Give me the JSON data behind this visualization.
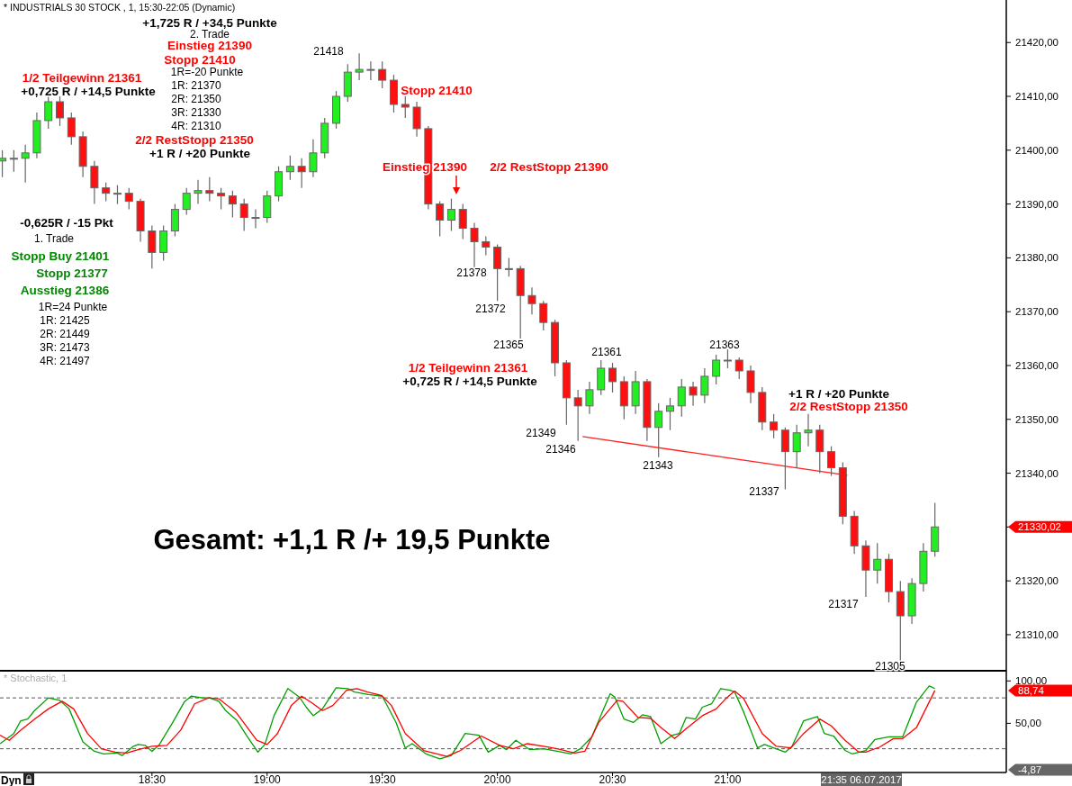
{
  "chart_data": [
    {
      "type": "candlestick",
      "title": "* INDUSTRIALS 30 STOCK , 1, 15:30-22:05 (Dynamic)",
      "tick_labels": "y",
      "xlim": [
        17.84,
        22.21
      ],
      "ylim": [
        21303.3,
        21427.9
      ],
      "yticks": [
        {
          "value": 21310,
          "label": "21310,00"
        },
        {
          "value": 21320,
          "label": "21320,00"
        },
        {
          "value": 21330,
          "label": null
        },
        {
          "value": 21340,
          "label": "21340,00"
        },
        {
          "value": 21350,
          "label": "21350,00"
        },
        {
          "value": 21360,
          "label": "21360,00"
        },
        {
          "value": 21370,
          "label": "21370,00"
        },
        {
          "value": 21380,
          "label": "21380,00"
        },
        {
          "value": 21390,
          "label": "21390,00"
        },
        {
          "value": 21400,
          "label": "21400,00"
        },
        {
          "value": 21410,
          "label": "21410,00"
        },
        {
          "value": 21420,
          "label": "21420,00"
        }
      ],
      "x": [
        17.85,
        17.9,
        17.95,
        18,
        18.05,
        18.1,
        18.15,
        18.2,
        18.25,
        18.3,
        18.35,
        18.4,
        18.45,
        18.5,
        18.55,
        18.6,
        18.65,
        18.7,
        18.75,
        18.8,
        18.85,
        18.9,
        18.95,
        19,
        19.05,
        19.1,
        19.15,
        19.2,
        19.25,
        19.3,
        19.35,
        19.4,
        19.45,
        19.5,
        19.55,
        19.6,
        19.65,
        19.7,
        19.75,
        19.8,
        19.85,
        19.9,
        19.95,
        20,
        20.05,
        20.1,
        20.15,
        20.2,
        20.25,
        20.3,
        20.35,
        20.4,
        20.45,
        20.5,
        20.55,
        20.6,
        20.65,
        20.7,
        20.75,
        20.8,
        20.85,
        20.9,
        20.95,
        21,
        21.05,
        21.1,
        21.15,
        21.2,
        21.25,
        21.3,
        21.35,
        21.4,
        21.45,
        21.5,
        21.55,
        21.6,
        21.65,
        21.7,
        21.75,
        21.8,
        21.85,
        21.9
      ],
      "ohlc": [
        [
          21398,
          21400,
          21395,
          21398.5
        ],
        [
          21398.5,
          21400,
          21396,
          21398.5
        ],
        [
          21398.5,
          21401,
          21394,
          21399.5
        ],
        [
          21399.5,
          21407,
          21398.5,
          21405.5
        ],
        [
          21405.5,
          21411,
          21404,
          21409
        ],
        [
          21409,
          21410,
          21404.5,
          21406
        ],
        [
          21406,
          21407,
          21401,
          21402.5
        ],
        [
          21402.5,
          21403.5,
          21395,
          21397
        ],
        [
          21397,
          21398,
          21390,
          21393
        ],
        [
          21393,
          21394,
          21390.5,
          21392
        ],
        [
          21392,
          21393.5,
          21390,
          21392
        ],
        [
          21392,
          21393,
          21389,
          21390.5
        ],
        [
          21390.5,
          21391,
          21383,
          21385
        ],
        [
          21385,
          21386,
          21378,
          21381
        ],
        [
          21381,
          21386,
          21379.5,
          21385
        ],
        [
          21385,
          21390,
          21384,
          21389
        ],
        [
          21389,
          21393,
          21388,
          21392
        ],
        [
          21392,
          21394.5,
          21390,
          21392.5
        ],
        [
          21392.5,
          21395,
          21390.5,
          21392
        ],
        [
          21392,
          21393,
          21389,
          21391.5
        ],
        [
          21391.5,
          21392.5,
          21387.5,
          21390
        ],
        [
          21390,
          21391,
          21385,
          21387.5
        ],
        [
          21387.5,
          21389,
          21385.5,
          21387.5
        ],
        [
          21387.5,
          21392.5,
          21386.5,
          21391.5
        ],
        [
          21391.5,
          21397,
          21390.5,
          21396
        ],
        [
          21396,
          21399,
          21394.5,
          21397
        ],
        [
          21397,
          21398.5,
          21393,
          21396
        ],
        [
          21396,
          21402,
          21395,
          21399.5
        ],
        [
          21399.5,
          21406,
          21398.5,
          21405
        ],
        [
          21405,
          21411,
          21404,
          21410
        ],
        [
          21410,
          21416,
          21409,
          21414.5
        ],
        [
          21414.5,
          21418,
          21413,
          21415
        ],
        [
          21415,
          21416.5,
          21413,
          21415
        ],
        [
          21415,
          21416.5,
          21411.5,
          21413
        ],
        [
          21413,
          21414,
          21407,
          21408.5
        ],
        [
          21408.5,
          21410,
          21406,
          21408
        ],
        [
          21408,
          21409,
          21402.5,
          21404
        ],
        [
          21404,
          21404.5,
          21389,
          21390
        ],
        [
          21390,
          21390.5,
          21384,
          21387
        ],
        [
          21387,
          21391,
          21385,
          21389
        ],
        [
          21389,
          21390,
          21383.5,
          21385.5
        ],
        [
          21385.5,
          21386.5,
          21378,
          21383
        ],
        [
          21383,
          21384,
          21380.5,
          21382
        ],
        [
          21382,
          21382.5,
          21372,
          21378
        ],
        [
          21378,
          21380,
          21376.5,
          21378
        ],
        [
          21378,
          21378.5,
          21365,
          21373
        ],
        [
          21373,
          21374.5,
          21369.5,
          21371.5
        ],
        [
          21371.5,
          21372,
          21366.5,
          21368
        ],
        [
          21368,
          21368.5,
          21358,
          21360.5
        ],
        [
          21360.5,
          21361,
          21349,
          21354
        ],
        [
          21354,
          21355.5,
          21346,
          21352.5
        ],
        [
          21352.5,
          21357,
          21351,
          21355.5
        ],
        [
          21355.5,
          21361,
          21354.5,
          21359.5
        ],
        [
          21359.5,
          21360.5,
          21355,
          21357
        ],
        [
          21357,
          21358,
          21350,
          21352.5
        ],
        [
          21352.5,
          21359,
          21351,
          21357
        ],
        [
          21357,
          21357.5,
          21346,
          21348.5
        ],
        [
          21348.5,
          21353,
          21343,
          21351.5
        ],
        [
          21351.5,
          21354,
          21348,
          21352.5
        ],
        [
          21352.5,
          21357.5,
          21350.5,
          21356
        ],
        [
          21356,
          21357,
          21352.5,
          21354.5
        ],
        [
          21354.5,
          21359.5,
          21353,
          21358
        ],
        [
          21358,
          21362,
          21356.5,
          21361
        ],
        [
          21361,
          21363,
          21359.5,
          21361
        ],
        [
          21361,
          21361.5,
          21357.5,
          21359
        ],
        [
          21359,
          21360,
          21353,
          21355
        ],
        [
          21355,
          21356,
          21348,
          21349.5
        ],
        [
          21349.5,
          21351,
          21346.5,
          21348
        ],
        [
          21348,
          21348.5,
          21337,
          21344
        ],
        [
          21344,
          21349,
          21341,
          21347.5
        ],
        [
          21347.5,
          21351,
          21345,
          21348
        ],
        [
          21348,
          21349,
          21340,
          21344
        ],
        [
          21344,
          21345,
          21339.5,
          21341
        ],
        [
          21341,
          21342,
          21330.5,
          21332
        ],
        [
          21332,
          21333,
          21325,
          21326.5
        ],
        [
          21326.5,
          21327.5,
          21317,
          21322
        ],
        [
          21322,
          21327,
          21319.5,
          21324
        ],
        [
          21324,
          21325,
          21316,
          21318
        ],
        [
          21318,
          21320,
          21305,
          21313.5
        ],
        [
          21313.5,
          21320.5,
          21312,
          21319.5
        ],
        [
          21319.5,
          21327,
          21318,
          21325.5
        ],
        [
          21325.5,
          21334.5,
          21324.5,
          21330.02
        ]
      ],
      "series": [
        {
          "type": "line",
          "color": "#ff2020",
          "x": [
            20.37,
            21.52
          ],
          "values": [
            21346.8,
            21339.6
          ]
        }
      ],
      "annotations": [
        "+1,725 R / +34,5 Punkte",
        "2. Trade",
        "Einstieg 21390",
        "Stopp 21410",
        "1R=-20 Punkte",
        "1R: 21370",
        "2R: 21350",
        "3R: 21330",
        "4R: 21310",
        "1/2 Teilgewinn 21361",
        "+0,725 R / +14,5 Punkte",
        "2/2 RestStopp 21350",
        "+1 R / +20 Punkte",
        "21418",
        "Stopp 21410",
        "Einstieg 21390",
        "2/2 RestStopp 21390",
        "-0,625R / -15 Pkt",
        "1. Trade",
        "Stopp Buy 21401",
        "Stopp 21377",
        "Ausstieg 21386",
        "1R=24 Punkte",
        "1R: 21425",
        "2R: 21449",
        "3R: 21473",
        "4R: 21497",
        "21378",
        "21372",
        "21365",
        "1/2 Teilgewinn 21361",
        "+0,725 R / +14,5 Punkte",
        "21361",
        "21363",
        "21349",
        "21346",
        "21343",
        "21337",
        "+1 R / +20 Punkte",
        "2/2 RestStopp 21350",
        "21317",
        "21305",
        "Gesamt: +1,1 R /+ 19,5 Punkte",
        "21330,02"
      ]
    },
    {
      "type": "line",
      "title": "* Stochastic, 1",
      "xlim": [
        17.84,
        22.21
      ],
      "xticks": [
        {
          "value": 18.5,
          "label": "18:30"
        },
        {
          "value": 19,
          "label": "19:00"
        },
        {
          "value": 19.5,
          "label": "19:30"
        },
        {
          "value": 20,
          "label": "20:00"
        },
        {
          "value": 20.5,
          "label": "20:30"
        },
        {
          "value": 21,
          "label": "21:00"
        }
      ],
      "ylim": [
        -8,
        112
      ],
      "yticks": [
        {
          "value": 100,
          "label": "100,00"
        },
        {
          "value": 50,
          "label": "50,00"
        }
      ],
      "series": [
        {
          "color": "#00a000",
          "x": [
            17.84,
            17.9,
            17.93,
            17.96,
            17.99,
            18.05,
            18.1,
            18.14,
            18.2,
            18.25,
            18.29,
            18.35,
            18.37,
            18.42,
            18.44,
            18.47,
            18.5,
            18.53,
            18.59,
            18.64,
            18.67,
            18.72,
            18.75,
            18.79,
            18.82,
            18.87,
            18.91,
            18.96,
            18.99,
            19.03,
            19.09,
            19.14,
            19.17,
            19.2,
            19.24,
            19.3,
            19.35,
            19.38,
            19.44,
            19.5,
            19.56,
            19.6,
            19.63,
            19.69,
            19.75,
            19.8,
            19.86,
            19.92,
            19.96,
            20.01,
            20.04,
            20.08,
            20.14,
            20.2,
            20.26,
            20.32,
            20.36,
            20.41,
            20.455,
            20.49,
            20.51,
            20.55,
            20.59,
            20.63,
            20.665,
            20.71,
            20.76,
            20.79,
            20.82,
            20.86,
            20.89,
            20.93,
            20.97,
            21.01,
            21.03,
            21.07,
            21.13,
            21.16,
            21.21,
            21.25,
            21.28,
            21.33,
            21.39,
            21.42,
            21.46,
            21.51,
            21.54,
            21.6,
            21.64,
            21.7,
            21.76,
            21.82,
            21.875,
            21.9
          ],
          "values": [
            26,
            38,
            53,
            55,
            65,
            80,
            77,
            67,
            28,
            17,
            14,
            15,
            12,
            23,
            25,
            24,
            17,
            24,
            51,
            75,
            82,
            80,
            80,
            76,
            65,
            53,
            36,
            16,
            25,
            59,
            91,
            81,
            69,
            59,
            67,
            92,
            91,
            87,
            84,
            82,
            51,
            21,
            26,
            14,
            8,
            12,
            38,
            36,
            16,
            24,
            19,
            30,
            19,
            20,
            17,
            14,
            20,
            34,
            63,
            85,
            81,
            55,
            51,
            60,
            58,
            26,
            36,
            38,
            57,
            55,
            69,
            73,
            91,
            89,
            87,
            63,
            21,
            25,
            20,
            16,
            23,
            53,
            58,
            38,
            35,
            18,
            14,
            18,
            31,
            34,
            34,
            75,
            94,
            91
          ]
        },
        {
          "color": "#ff0000",
          "x": [
            17.84,
            17.88,
            17.93,
            17.99,
            18.05,
            18.11,
            18.16,
            18.22,
            18.28,
            18.34,
            18.39,
            18.44,
            18.5,
            18.565,
            18.625,
            18.685,
            18.745,
            18.79,
            18.865,
            18.955,
            19,
            19.045,
            19.105,
            19.15,
            19.195,
            19.24,
            19.285,
            19.345,
            19.39,
            19.436,
            19.496,
            19.54,
            19.6,
            19.68,
            19.78,
            19.84,
            19.93,
            20.01,
            20.07,
            20.13,
            20.2,
            20.26,
            20.335,
            20.38,
            20.44,
            20.52,
            20.545,
            20.61,
            20.665,
            20.71,
            20.77,
            20.83,
            20.89,
            20.95,
            20.995,
            21.03,
            21.07,
            21.15,
            21.21,
            21.275,
            21.33,
            21.4,
            21.45,
            21.51,
            21.57,
            21.6,
            21.66,
            21.72,
            21.76,
            21.82,
            21.9
          ],
          "values": [
            36,
            30,
            42,
            55,
            67,
            76,
            67,
            38,
            20,
            16,
            15,
            19,
            23,
            24,
            42,
            73,
            80,
            79,
            63,
            30,
            25,
            38,
            71,
            82,
            74,
            65,
            71,
            89,
            91,
            87,
            83,
            71,
            38,
            18,
            11,
            18,
            35,
            24,
            20,
            26,
            23,
            20,
            15,
            17,
            51,
            77,
            76,
            57,
            56,
            45,
            32,
            46,
            59,
            67,
            80,
            88,
            79,
            38,
            23,
            21,
            38,
            55,
            47,
            30,
            16,
            16,
            22,
            32,
            32,
            45,
            88.74
          ]
        }
      ],
      "ref_lines": [
        {
          "axis": "y",
          "value": 80,
          "color": "#555555",
          "line_style": "dashed"
        },
        {
          "axis": "y",
          "value": 20,
          "color": "#555555",
          "line_style": "dashed"
        }
      ],
      "annotations": [
        "88,74",
        "-4,87",
        "21:35 06.07.2017",
        "Dyn"
      ]
    }
  ]
}
